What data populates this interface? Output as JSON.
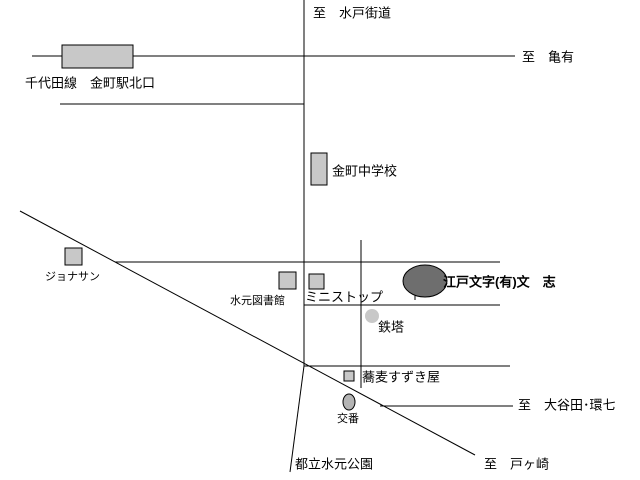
{
  "labels": [
    "至　水戸街道",
    "至　亀有",
    "千代田線　金町駅北口",
    "金町中学校",
    "ジョナサン",
    "水元図書館",
    "ミニストップ",
    "江戸文字(有)文　志",
    "鉄塔",
    "蕎麦すずき屋",
    "交番",
    "至　大谷田･環七",
    "都立水元公園",
    "至　戸ヶ崎"
  ]
}
